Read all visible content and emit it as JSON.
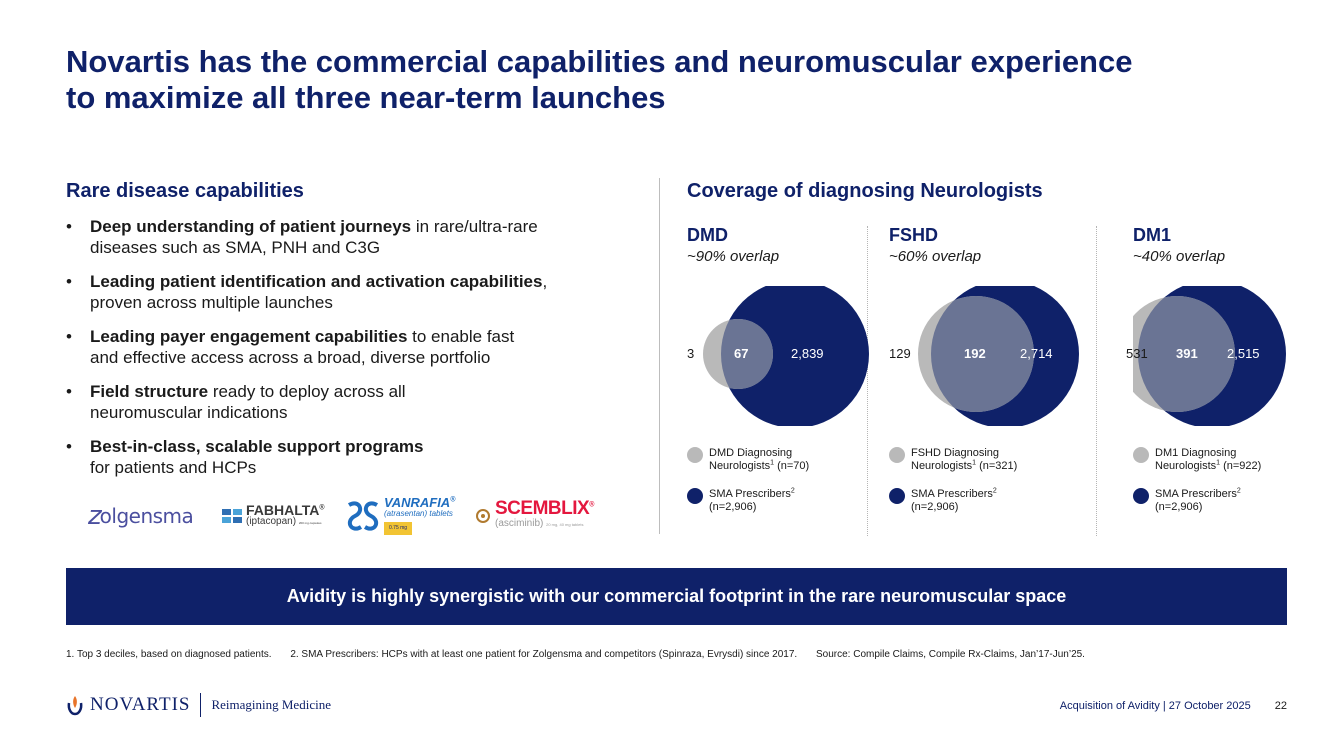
{
  "title": {
    "line1": "Novartis has the commercial capabilities and neuromuscular experience",
    "line2": "to maximize all three near-term launches"
  },
  "left": {
    "heading": "Rare disease capabilities",
    "bullets": [
      {
        "bold": "Deep understanding of patient journeys",
        "rest": " in rare/ultra-rare",
        "line2": "diseases such as SMA, PNH and C3G"
      },
      {
        "bold": "Leading patient identification and activation capabilities",
        "rest": ",",
        "line2": "proven across multiple launches"
      },
      {
        "bold": "Leading payer engagement capabilities",
        "rest": " to enable fast",
        "line2": "and effective access across a broad, diverse portfolio"
      },
      {
        "bold": "Field structure",
        "rest": " ready to deploy across all",
        "line2": "neuromuscular indications"
      },
      {
        "bold": "Best-in-class, scalable support programs",
        "rest": "",
        "line2": "for patients and HCPs"
      }
    ],
    "bullet_char": "•",
    "logos": {
      "zolgensma": {
        "prefix": "z",
        "rest": "olgensma"
      },
      "fabhalta": {
        "name": "FABHALTA",
        "reg": "®",
        "sub": "(iptacopan)",
        "dose": "200 mg capsules"
      },
      "vanrafia": {
        "name": "VANRAFIA",
        "reg": "®",
        "sub": "(atrasentan) tablets",
        "dose": "0.75 mg"
      },
      "scemblix": {
        "name": "SCEMBLIX",
        "reg": "®",
        "sub": "(asciminib)",
        "dose": "20 mg, 40 mg tablets"
      }
    }
  },
  "right": {
    "heading": "Coverage of diagnosing Neurologists",
    "columns": [
      {
        "name": "DMD",
        "overlap": "~90% overlap",
        "left_only": "3",
        "both": "67",
        "right_only": "2,839",
        "legend1_a": "DMD Diagnosing",
        "legend1_b": "Neurologists",
        "legend1_sup": "1",
        "legend1_c": " (n=70)",
        "legend2_a": "SMA Prescribers",
        "legend2_sup": "2",
        "legend2_b": "(n=2,906)"
      },
      {
        "name": "FSHD",
        "overlap": "~60% overlap",
        "left_only": "129",
        "both": "192",
        "right_only": "2,714",
        "legend1_a": "FSHD Diagnosing",
        "legend1_b": "Neurologists",
        "legend1_sup": "1",
        "legend1_c": " (n=321)",
        "legend2_a": "SMA Prescribers",
        "legend2_sup": "2",
        "legend2_b": "(n=2,906)"
      },
      {
        "name": "DM1",
        "overlap": "~40% overlap",
        "left_only": "531",
        "both": "391",
        "right_only": "2,515",
        "legend1_a": "DM1 Diagnosing",
        "legend1_b": "Neurologists",
        "legend1_sup": "1",
        "legend1_c": " (n=922)",
        "legend2_a": "SMA Prescribers",
        "legend2_sup": "2",
        "legend2_b": "(n=2,906)"
      }
    ]
  },
  "banner": "Avidity is highly synergistic with our commercial footprint in the rare neuromuscular space",
  "footnotes": {
    "f1": "1. Top 3 deciles, based on diagnosed patients.",
    "f2": "2. SMA Prescribers: HCPs with at least one patient for Zolgensma and competitors (Spinraza, Evrysdi) since 2017.",
    "f3": "Source: Compile Claims, Compile Rx-Claims, Jan’17-Jun’25."
  },
  "footer": {
    "brand": "NOVARTIS",
    "tagline": "Reimagining Medicine",
    "event": "Acquisition of Avidity | 27 October 2025",
    "page": "22"
  },
  "colors": {
    "navy": "#0f2169",
    "grey": "#b9b9b9",
    "overlap": "#6a7494",
    "orange": "#e8742a"
  }
}
